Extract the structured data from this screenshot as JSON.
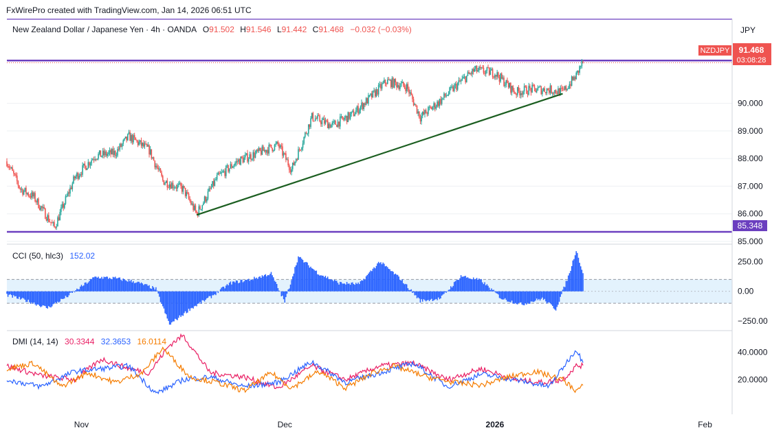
{
  "header": {
    "credit": "FxWirePro created with TradingView.com, Jan 14, 2026 06:51 UTC"
  },
  "symbol_bar": {
    "title": "New Zealand Dollar / Japanese Yen · 4h · OANDA",
    "o_label": "O",
    "o_value": "91.502",
    "h_label": "H",
    "h_value": "91.546",
    "l_label": "L",
    "l_value": "91.442",
    "c_label": "C",
    "c_value": "91.468",
    "change": "−0.032 (−0.03%)"
  },
  "currency_label": "JPY",
  "price_tag": {
    "symbol": "NZDJPY",
    "price": "91.468",
    "countdown": "03:08:28"
  },
  "level_tag": {
    "price": "85.348"
  },
  "colors": {
    "up": "#26a69a",
    "down": "#ef5350",
    "purple": "#6b3fbf",
    "trend": "#1b5e20",
    "cci": "#2962ff",
    "dmi_plus": "#e91e63",
    "dmi_minus": "#2962ff",
    "adx": "#f57c00",
    "axis_text": "#131722",
    "grid": "#eef0f3"
  },
  "chart_data": [
    {
      "type": "candlestick",
      "title": "New Zealand Dollar / Japanese Yen · 4h · OANDA",
      "ylim": [
        84.9,
        92.35
      ],
      "yticks": [
        "85.000",
        "86.000",
        "87.000",
        "88.000",
        "89.000",
        "90.000"
      ],
      "xticks": [
        "Nov",
        "Dec",
        "2026",
        "Feb"
      ],
      "ohlc_last": {
        "open": 91.502,
        "high": 91.546,
        "low": 91.442,
        "close": 91.468
      },
      "anchors": [
        {
          "date": "Oct 21",
          "price": 87.9
        },
        {
          "date": "Oct 23",
          "price": 86.9
        },
        {
          "date": "Oct 25",
          "price": 86.6
        },
        {
          "date": "Oct 28",
          "price": 85.5
        },
        {
          "date": "Oct 31",
          "price": 87.3
        },
        {
          "date": "Nov 3",
          "price": 88.1
        },
        {
          "date": "Nov 6",
          "price": 88.2
        },
        {
          "date": "Nov 8",
          "price": 88.8
        },
        {
          "date": "Nov 11",
          "price": 88.3
        },
        {
          "date": "Nov 13",
          "price": 87.2
        },
        {
          "date": "Nov 16",
          "price": 86.9
        },
        {
          "date": "Nov 18",
          "price": 86.0
        },
        {
          "date": "Nov 21",
          "price": 87.3
        },
        {
          "date": "Nov 24",
          "price": 87.9
        },
        {
          "date": "Nov 27",
          "price": 88.2
        },
        {
          "date": "Nov 30",
          "price": 88.5
        },
        {
          "date": "Dec 2",
          "price": 87.6
        },
        {
          "date": "Dec 5",
          "price": 89.5
        },
        {
          "date": "Dec 8",
          "price": 89.2
        },
        {
          "date": "Dec 11",
          "price": 89.6
        },
        {
          "date": "Dec 14",
          "price": 90.3
        },
        {
          "date": "Dec 16",
          "price": 90.8
        },
        {
          "date": "Dec 19",
          "price": 90.6
        },
        {
          "date": "Dec 21",
          "price": 89.5
        },
        {
          "date": "Dec 24",
          "price": 90.1
        },
        {
          "date": "Dec 27",
          "price": 90.8
        },
        {
          "date": "Dec 29",
          "price": 91.2
        },
        {
          "date": "Jan 1",
          "price": 91.1
        },
        {
          "date": "Jan 4",
          "price": 90.4
        },
        {
          "date": "Jan 6",
          "price": 90.5
        },
        {
          "date": "Jan 9",
          "price": 90.5
        },
        {
          "date": "Jan 11",
          "price": 90.4
        },
        {
          "date": "Jan 13",
          "price": 91.0
        },
        {
          "date": "Jan 14",
          "price": 91.55
        }
      ],
      "levels": [
        {
          "price": 91.55,
          "style": "purple"
        },
        {
          "price": 85.348,
          "style": "purple"
        },
        {
          "price": 91.468,
          "style": "dotted-red"
        }
      ],
      "trendline": [
        {
          "date": "Nov 18",
          "price": 85.96
        },
        {
          "date": "Jan 11",
          "price": 90.35
        }
      ]
    },
    {
      "type": "bar",
      "title": "CCI (50, hlc3)",
      "value": "152.02",
      "ylim": [
        -330,
        390
      ],
      "yticks": [
        "250.00",
        "0.00",
        "−250.00"
      ],
      "bands": [
        100,
        -100
      ],
      "anchors": [
        {
          "date": "Oct 21",
          "value": -30
        },
        {
          "date": "Oct 24",
          "value": -80
        },
        {
          "date": "Oct 27",
          "value": -140
        },
        {
          "date": "Oct 30",
          "value": -40
        },
        {
          "date": "Nov 3",
          "value": 120
        },
        {
          "date": "Nov 6",
          "value": 110
        },
        {
          "date": "Nov 9",
          "value": 80
        },
        {
          "date": "Nov 12",
          "value": 20
        },
        {
          "date": "Nov 14",
          "value": -280
        },
        {
          "date": "Nov 17",
          "value": -150
        },
        {
          "date": "Nov 20",
          "value": -50
        },
        {
          "date": "Nov 23",
          "value": 70
        },
        {
          "date": "Nov 26",
          "value": 100
        },
        {
          "date": "Nov 29",
          "value": 150
        },
        {
          "date": "Dec 1",
          "value": -90
        },
        {
          "date": "Dec 3",
          "value": 290
        },
        {
          "date": "Dec 6",
          "value": 150
        },
        {
          "date": "Dec 9",
          "value": 70
        },
        {
          "date": "Dec 12",
          "value": 60
        },
        {
          "date": "Dec 15",
          "value": 250
        },
        {
          "date": "Dec 18",
          "value": 110
        },
        {
          "date": "Dec 21",
          "value": -80
        },
        {
          "date": "Dec 24",
          "value": -60
        },
        {
          "date": "Dec 27",
          "value": 130
        },
        {
          "date": "Dec 30",
          "value": 90
        },
        {
          "date": "Jan 2",
          "value": -60
        },
        {
          "date": "Jan 5",
          "value": -110
        },
        {
          "date": "Jan 8",
          "value": -60
        },
        {
          "date": "Jan 10",
          "value": -150
        },
        {
          "date": "Jan 12",
          "value": 150
        },
        {
          "date": "Jan 13",
          "value": 350
        },
        {
          "date": "Jan 14",
          "value": 152
        }
      ]
    },
    {
      "type": "line",
      "title": "DMI (14, 14)",
      "ylim": [
        -5,
        55
      ],
      "yticks": [
        "40.0000",
        "20.0000"
      ],
      "series": [
        {
          "value": "30.3344",
          "color": "#e91e63",
          "anchors": [
            {
              "date": "Oct 21",
              "value": 30
            },
            {
              "date": "Oct 26",
              "value": 23
            },
            {
              "date": "Oct 31",
              "value": 20
            },
            {
              "date": "Nov 4",
              "value": 35
            },
            {
              "date": "Nov 8",
              "value": 28
            },
            {
              "date": "Nov 11",
              "value": 25
            },
            {
              "date": "Nov 14",
              "value": 45
            },
            {
              "date": "Nov 16",
              "value": 52
            },
            {
              "date": "Nov 20",
              "value": 25
            },
            {
              "date": "Nov 25",
              "value": 22
            },
            {
              "date": "Nov 30",
              "value": 14
            },
            {
              "date": "Dec 5",
              "value": 30
            },
            {
              "date": "Dec 10",
              "value": 20
            },
            {
              "date": "Dec 15",
              "value": 30
            },
            {
              "date": "Dec 20",
              "value": 32
            },
            {
              "date": "Dec 25",
              "value": 20
            },
            {
              "date": "Dec 30",
              "value": 28
            },
            {
              "date": "Jan 4",
              "value": 20
            },
            {
              "date": "Jan 8",
              "value": 18
            },
            {
              "date": "Jan 11",
              "value": 20
            },
            {
              "date": "Jan 13",
              "value": 30
            },
            {
              "date": "Jan 14",
              "value": 30.3
            }
          ]
        },
        {
          "value": "32.3653",
          "color": "#2962ff",
          "anchors": [
            {
              "date": "Oct 21",
              "value": 20
            },
            {
              "date": "Oct 26",
              "value": 15
            },
            {
              "date": "Oct 31",
              "value": 26
            },
            {
              "date": "Nov 4",
              "value": 28
            },
            {
              "date": "Nov 8",
              "value": 30
            },
            {
              "date": "Nov 12",
              "value": 10
            },
            {
              "date": "Nov 16",
              "value": 20
            },
            {
              "date": "Nov 20",
              "value": 22
            },
            {
              "date": "Nov 25",
              "value": 15
            },
            {
              "date": "Nov 30",
              "value": 18
            },
            {
              "date": "Dec 5",
              "value": 33
            },
            {
              "date": "Dec 10",
              "value": 18
            },
            {
              "date": "Dec 15",
              "value": 25
            },
            {
              "date": "Dec 20",
              "value": 32
            },
            {
              "date": "Dec 25",
              "value": 15
            },
            {
              "date": "Dec 30",
              "value": 24
            },
            {
              "date": "Jan 4",
              "value": 20
            },
            {
              "date": "Jan 9",
              "value": 15
            },
            {
              "date": "Jan 13",
              "value": 42
            },
            {
              "date": "Jan 14",
              "value": 32.4
            }
          ]
        },
        {
          "value": "16.0114",
          "color": "#f57c00",
          "anchors": [
            {
              "date": "Oct 21",
              "value": 28
            },
            {
              "date": "Oct 25",
              "value": 32
            },
            {
              "date": "Oct 29",
              "value": 15
            },
            {
              "date": "Nov 2",
              "value": 25
            },
            {
              "date": "Nov 6",
              "value": 18
            },
            {
              "date": "Nov 10",
              "value": 25
            },
            {
              "date": "Nov 13",
              "value": 43
            },
            {
              "date": "Nov 17",
              "value": 22
            },
            {
              "date": "Nov 21",
              "value": 18
            },
            {
              "date": "Nov 25",
              "value": 12
            },
            {
              "date": "Nov 29",
              "value": 25
            },
            {
              "date": "Dec 2",
              "value": 14
            },
            {
              "date": "Dec 6",
              "value": 26
            },
            {
              "date": "Dec 10",
              "value": 14
            },
            {
              "date": "Dec 14",
              "value": 25
            },
            {
              "date": "Dec 17",
              "value": 30
            },
            {
              "date": "Dec 22",
              "value": 22
            },
            {
              "date": "Dec 26",
              "value": 18
            },
            {
              "date": "Dec 30",
              "value": 16
            },
            {
              "date": "Jan 3",
              "value": 22
            },
            {
              "date": "Jan 7",
              "value": 26
            },
            {
              "date": "Jan 11",
              "value": 20
            },
            {
              "date": "Jan 13",
              "value": 12
            },
            {
              "date": "Jan 14",
              "value": 16
            }
          ]
        }
      ]
    }
  ]
}
